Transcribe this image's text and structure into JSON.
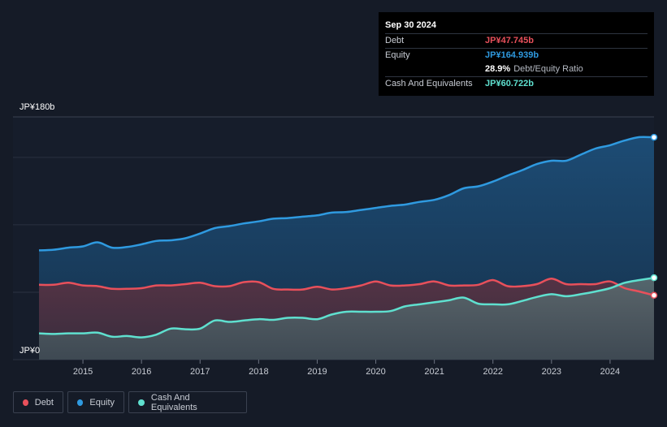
{
  "tooltip": {
    "date": "Sep 30 2024",
    "debt_label": "Debt",
    "debt_value": "JP¥47.745b",
    "equity_label": "Equity",
    "equity_value": "JP¥164.939b",
    "ratio_value": "28.9%",
    "ratio_label": "Debt/Equity Ratio",
    "cash_label": "Cash And Equivalents",
    "cash_value": "JP¥60.722b"
  },
  "legend": {
    "debt": "Debt",
    "equity": "Equity",
    "cash": "Cash And Equivalents"
  },
  "colors": {
    "debt": "#e8505b",
    "equity": "#2f9ae0",
    "cash": "#5fe0cf",
    "background": "#151b27"
  },
  "chart_data": {
    "type": "area",
    "y_axis_labels": [
      "JP¥180b",
      "JP¥0"
    ],
    "ylim": [
      0,
      180
    ],
    "xlim": [
      2014.25,
      2024.75
    ],
    "x_tick_labels": [
      "2015",
      "2016",
      "2017",
      "2018",
      "2019",
      "2020",
      "2021",
      "2022",
      "2023",
      "2024"
    ],
    "x_ticks": [
      2015,
      2016,
      2017,
      2018,
      2019,
      2020,
      2021,
      2022,
      2023,
      2024
    ],
    "grid": true,
    "legend_position": "bottom-left",
    "series": [
      {
        "name": "Equity",
        "x": [
          2014.25,
          2014.5,
          2014.75,
          2015.0,
          2015.25,
          2015.5,
          2015.75,
          2016.0,
          2016.25,
          2016.5,
          2016.75,
          2017.0,
          2017.25,
          2017.5,
          2017.75,
          2018.0,
          2018.25,
          2018.5,
          2018.75,
          2019.0,
          2019.25,
          2019.5,
          2019.75,
          2020.0,
          2020.25,
          2020.5,
          2020.75,
          2021.0,
          2021.25,
          2021.5,
          2021.75,
          2022.0,
          2022.25,
          2022.5,
          2022.75,
          2023.0,
          2023.25,
          2023.5,
          2023.75,
          2024.0,
          2024.25,
          2024.5,
          2024.75
        ],
        "values": [
          81,
          81.5,
          83,
          84,
          87,
          83,
          83.5,
          85.5,
          88,
          88.5,
          90,
          93.5,
          97.5,
          99,
          101,
          102.5,
          104.5,
          105,
          106,
          107,
          109,
          109.5,
          111,
          112.5,
          114,
          115,
          117,
          118.5,
          122,
          127,
          128.5,
          132,
          136.5,
          140.5,
          145,
          147.5,
          147.5,
          152,
          156.5,
          159,
          162.5,
          165,
          164.9
        ]
      },
      {
        "name": "Debt",
        "x": [
          2014.25,
          2014.5,
          2014.75,
          2015.0,
          2015.25,
          2015.5,
          2015.75,
          2016.0,
          2016.25,
          2016.5,
          2016.75,
          2017.0,
          2017.25,
          2017.5,
          2017.75,
          2018.0,
          2018.25,
          2018.5,
          2018.75,
          2019.0,
          2019.25,
          2019.5,
          2019.75,
          2020.0,
          2020.25,
          2020.5,
          2020.75,
          2021.0,
          2021.25,
          2021.5,
          2021.75,
          2022.0,
          2022.25,
          2022.5,
          2022.75,
          2023.0,
          2023.25,
          2023.5,
          2023.75,
          2024.0,
          2024.25,
          2024.5,
          2024.75
        ],
        "values": [
          55.5,
          55.5,
          57,
          55,
          54.5,
          52.5,
          52.5,
          53,
          55,
          55,
          56,
          57,
          54.5,
          54.5,
          57.5,
          57.5,
          52.5,
          52,
          52,
          54,
          52,
          53,
          55,
          58,
          55,
          55,
          56,
          58,
          55,
          55,
          55.5,
          59,
          54.5,
          54.5,
          56,
          60,
          56,
          56,
          56,
          58,
          53,
          50.5,
          47.7
        ]
      },
      {
        "name": "Cash And Equivalents",
        "x": [
          2014.25,
          2014.5,
          2014.75,
          2015.0,
          2015.25,
          2015.5,
          2015.75,
          2016.0,
          2016.25,
          2016.5,
          2016.75,
          2017.0,
          2017.25,
          2017.5,
          2017.75,
          2018.0,
          2018.25,
          2018.5,
          2018.75,
          2019.0,
          2019.25,
          2019.5,
          2019.75,
          2020.0,
          2020.25,
          2020.5,
          2020.75,
          2021.0,
          2021.25,
          2021.5,
          2021.75,
          2022.0,
          2022.25,
          2022.5,
          2022.75,
          2023.0,
          2023.25,
          2023.5,
          2023.75,
          2024.0,
          2024.25,
          2024.5,
          2024.75
        ],
        "values": [
          19.5,
          19,
          19.5,
          19.5,
          20,
          17,
          17.5,
          16.5,
          18.5,
          23,
          22.5,
          23,
          29,
          28,
          29,
          30,
          29.5,
          31,
          31,
          30,
          33.5,
          35.5,
          35.5,
          35.5,
          36,
          39.5,
          41,
          42.5,
          44,
          46,
          41.5,
          41,
          41,
          43.5,
          46.5,
          48.5,
          47,
          48.5,
          50.5,
          53,
          57,
          59,
          60.7
        ]
      }
    ]
  }
}
